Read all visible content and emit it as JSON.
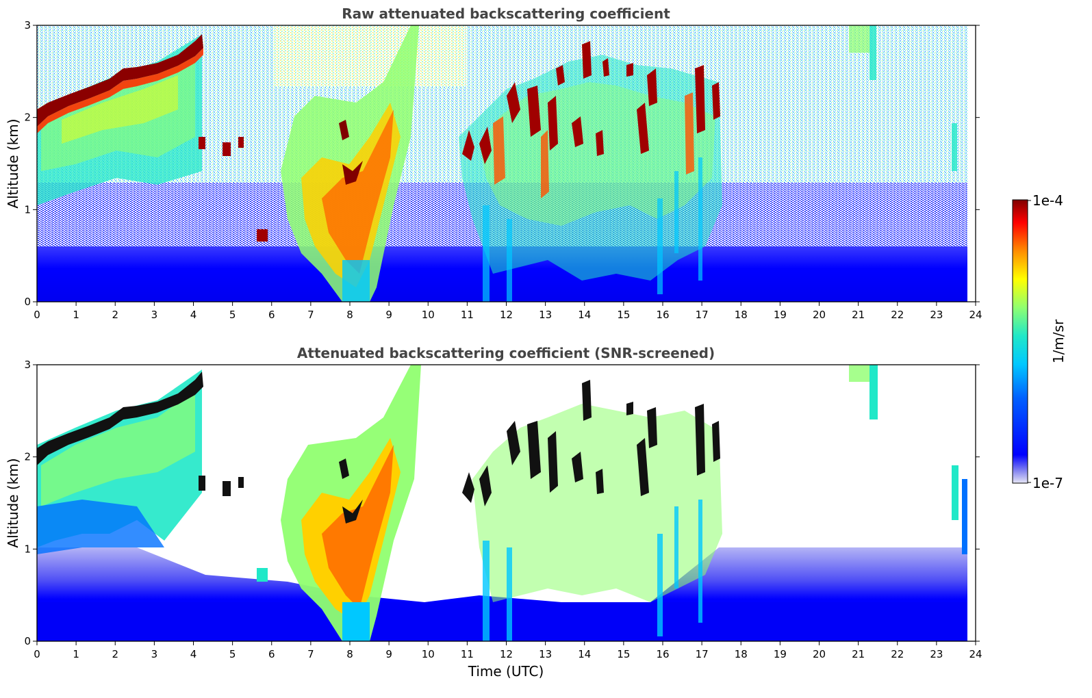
{
  "chart_data": [
    {
      "type": "heatmap",
      "title": "Raw attenuated backscattering coefficient",
      "xlabel": "",
      "ylabel": "Altitude (km)",
      "xlim": [
        0,
        24
      ],
      "ylim": [
        0,
        3
      ],
      "xticks": [
        "0",
        "1",
        "2",
        "3",
        "4",
        "5",
        "6",
        "7",
        "8",
        "9",
        "10",
        "11",
        "12",
        "13",
        "14",
        "15",
        "16",
        "17",
        "18",
        "19",
        "20",
        "21",
        "22",
        "23",
        "24"
      ],
      "yticks": [
        "0",
        "1",
        "2",
        "3"
      ],
      "features": [
        {
          "kind": "aerosol-layer-top",
          "points": [
            [
              0,
              2.0
            ],
            [
              1,
              2.2
            ],
            [
              2,
              2.38
            ],
            [
              2.5,
              2.55
            ],
            [
              3,
              2.62
            ],
            [
              3.5,
              2.7
            ],
            [
              4,
              2.85
            ],
            [
              4.25,
              2.95
            ]
          ]
        },
        {
          "kind": "cloud",
          "x_range": [
            6.8,
            9.8
          ],
          "alt_range": [
            0.0,
            3.0
          ]
        },
        {
          "kind": "clouds",
          "x_range": [
            11,
            17.5
          ],
          "alt_range": [
            1.5,
            2.8
          ]
        },
        {
          "kind": "boundary-layer",
          "x_range": [
            0,
            23.8
          ],
          "alt_range": [
            0.0,
            0.5
          ]
        }
      ]
    },
    {
      "type": "heatmap",
      "title": "Attenuated backscattering coefficient (SNR-screened)",
      "xlabel": "Time (UTC)",
      "ylabel": "Altitude (km)",
      "xlim": [
        0,
        24
      ],
      "ylim": [
        0,
        3
      ],
      "xticks": [
        "0",
        "1",
        "2",
        "3",
        "4",
        "5",
        "6",
        "7",
        "8",
        "9",
        "10",
        "11",
        "12",
        "13",
        "14",
        "15",
        "16",
        "17",
        "18",
        "19",
        "20",
        "21",
        "22",
        "23",
        "24"
      ],
      "yticks": [
        "0",
        "1",
        "2",
        "3"
      ],
      "screened": true
    }
  ],
  "colorbar": {
    "label": "1/m/sr",
    "min_label": "1e-7",
    "max_label": "1e-4",
    "scale": "log",
    "colormap": [
      "#e6e6f5",
      "#0000ff",
      "#00a0ff",
      "#00e0e0",
      "#80ff80",
      "#ffff00",
      "#ff8000",
      "#ff0000",
      "#800000"
    ]
  },
  "colors": {
    "title": "#444444",
    "background": "#ffffff",
    "low": "#0000ff",
    "high": "#800000"
  }
}
